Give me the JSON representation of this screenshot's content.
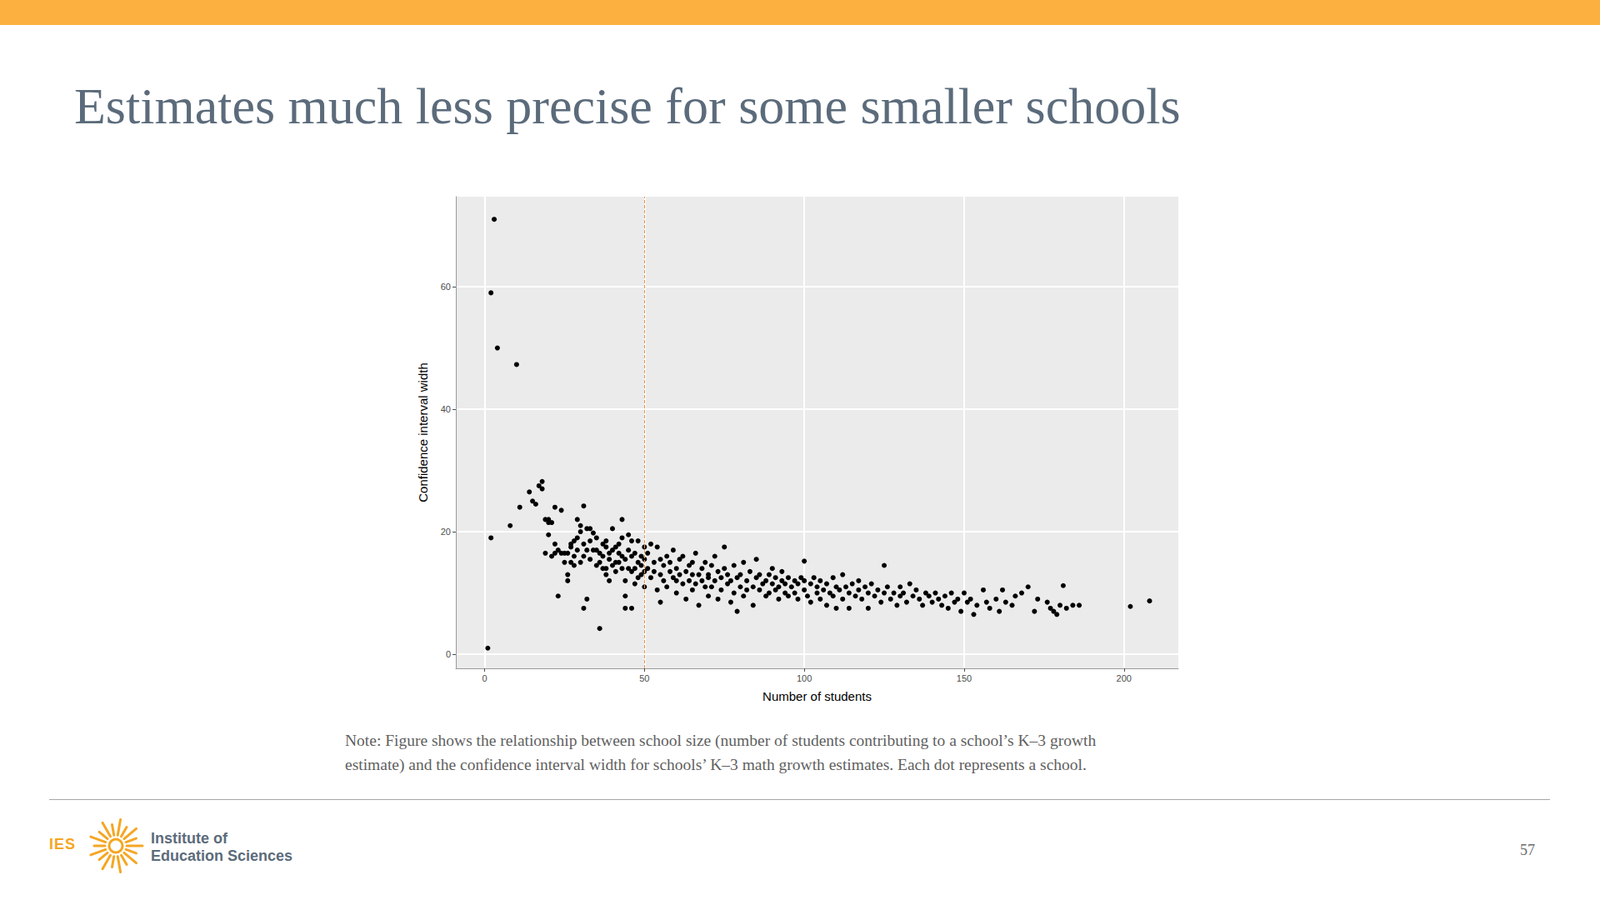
{
  "chart_data": {
    "type": "scatter",
    "title": "Estimates much less precise for some smaller schools",
    "x_label": "Number of students",
    "y_label": "Confidence interval width",
    "color": "#000000",
    "marker": "circle",
    "grid": true,
    "xlim": [
      -9,
      217
    ],
    "xticks": [
      0,
      50,
      100,
      150,
      200
    ],
    "ylim": [
      -2.3,
      74.7
    ],
    "yticks": [
      0,
      20,
      40,
      60
    ],
    "vlines": [
      {
        "x": 50,
        "color": "#e8944a",
        "line_style": "dashed"
      }
    ],
    "x": [
      3,
      2,
      4,
      10,
      1,
      2,
      8,
      11,
      14,
      15,
      16,
      17,
      18,
      18,
      19,
      19,
      20,
      20,
      20,
      21,
      21,
      22,
      22,
      22,
      23,
      23,
      24,
      24,
      25,
      25,
      26,
      26,
      26,
      27,
      27,
      27,
      28,
      28,
      28,
      29,
      29,
      29,
      30,
      30,
      30,
      31,
      31,
      31,
      31,
      32,
      32,
      32,
      33,
      33,
      33,
      34,
      34,
      35,
      35,
      35,
      36,
      36,
      36,
      37,
      37,
      37,
      38,
      38,
      38,
      38,
      39,
      39,
      39,
      40,
      40,
      40,
      41,
      41,
      41,
      42,
      42,
      42,
      43,
      43,
      43,
      43,
      44,
      44,
      44,
      44,
      45,
      45,
      45,
      46,
      46,
      46,
      46,
      47,
      47,
      47,
      48,
      48,
      48,
      49,
      49,
      49,
      50,
      50,
      50,
      50,
      51,
      51,
      52,
      52,
      53,
      53,
      54,
      54,
      55,
      55,
      55,
      56,
      56,
      57,
      57,
      58,
      58,
      59,
      59,
      60,
      60,
      60,
      61,
      61,
      62,
      62,
      63,
      63,
      64,
      64,
      65,
      65,
      65,
      66,
      66,
      67,
      67,
      68,
      68,
      69,
      69,
      70,
      70,
      70,
      71,
      71,
      72,
      72,
      73,
      73,
      74,
      74,
      75,
      75,
      76,
      76,
      77,
      77,
      78,
      78,
      79,
      79,
      80,
      80,
      81,
      81,
      82,
      82,
      83,
      84,
      84,
      85,
      85,
      86,
      86,
      87,
      88,
      88,
      89,
      89,
      90,
      90,
      91,
      91,
      92,
      92,
      93,
      93,
      94,
      94,
      95,
      95,
      96,
      97,
      97,
      98,
      98,
      99,
      100,
      100,
      100,
      101,
      102,
      102,
      103,
      104,
      104,
      105,
      105,
      106,
      107,
      107,
      108,
      109,
      109,
      110,
      110,
      111,
      112,
      112,
      113,
      114,
      114,
      115,
      116,
      117,
      117,
      118,
      119,
      120,
      120,
      121,
      122,
      123,
      124,
      125,
      125,
      126,
      127,
      128,
      129,
      130,
      130,
      131,
      132,
      133,
      134,
      135,
      136,
      137,
      138,
      139,
      140,
      141,
      142,
      143,
      144,
      145,
      146,
      147,
      148,
      149,
      150,
      151,
      152,
      153,
      154,
      156,
      157,
      158,
      160,
      161,
      162,
      163,
      165,
      166,
      168,
      170,
      172,
      173,
      176,
      177,
      178,
      179,
      180,
      181,
      182,
      184,
      186,
      202,
      208
    ],
    "values": [
      71,
      59,
      50,
      47.3,
      1,
      19,
      21,
      24,
      26.5,
      25,
      24.5,
      27.5,
      28.2,
      27,
      22,
      16.5,
      22,
      19.5,
      21.5,
      16,
      21.5,
      24,
      18,
      16.5,
      9.5,
      17,
      23.5,
      16.5,
      16.5,
      15,
      12,
      13,
      16.5,
      18,
      17.5,
      15,
      16,
      18.5,
      14.5,
      22,
      17,
      19,
      20,
      21,
      15,
      24.2,
      7.5,
      18,
      16,
      9,
      20.5,
      17,
      20.5,
      15.5,
      18.5,
      19.8,
      17,
      17,
      14.5,
      19,
      4.2,
      16.5,
      15,
      18,
      14,
      16,
      14,
      13,
      17.5,
      18.5,
      12,
      16.5,
      15.5,
      20.5,
      14.5,
      17,
      17.5,
      15,
      13.5,
      15,
      16.5,
      18,
      22,
      19,
      14,
      16,
      7.5,
      9.5,
      15.5,
      12,
      19.5,
      14,
      17,
      7.5,
      16,
      13.5,
      18.5,
      14,
      16.5,
      11.5,
      18.5,
      12.5,
      15,
      13,
      16,
      14.5,
      17.5,
      11,
      13.5,
      15.5,
      14,
      16.5,
      12.5,
      18,
      13.5,
      15,
      10.5,
      17.5,
      13,
      15.5,
      8.5,
      14.5,
      12,
      16,
      11,
      13.5,
      15,
      12.5,
      17,
      14,
      10,
      12,
      15.5,
      13,
      11.5,
      16,
      13.5,
      9,
      14.5,
      12,
      15,
      10.5,
      13,
      11.5,
      16.5,
      13,
      8,
      14,
      12,
      11,
      15,
      13,
      9.5,
      12.5,
      14.5,
      11,
      12,
      16,
      13.5,
      9,
      12.5,
      10.5,
      14,
      17.5,
      11.5,
      13,
      8.5,
      12,
      14.5,
      10,
      12.5,
      7,
      13,
      11,
      15,
      9.5,
      12,
      10.5,
      13.5,
      11,
      8,
      12.5,
      15.5,
      10.5,
      13,
      11.5,
      12,
      9.5,
      13,
      10,
      11.5,
      14,
      10.5,
      12.5,
      11,
      9,
      12,
      13.5,
      10,
      11.5,
      12.5,
      9.5,
      11,
      10,
      12,
      11.5,
      9,
      12.5,
      10.5,
      15.2,
      12,
      9.5,
      11.5,
      8.5,
      12.5,
      10,
      11,
      9,
      12,
      10.5,
      11.5,
      8,
      10,
      12.5,
      9.5,
      11,
      7.5,
      10.5,
      13,
      9,
      11,
      10,
      7.5,
      11.5,
      9.5,
      10.5,
      12,
      9,
      11,
      10,
      7.5,
      11.5,
      9.5,
      10.5,
      8.5,
      14.5,
      10,
      11,
      9,
      10,
      8,
      11,
      9.5,
      10,
      8.5,
      11.5,
      9.5,
      10.5,
      9,
      8,
      10,
      9.5,
      8.5,
      10,
      9,
      8,
      9.5,
      7.5,
      10,
      8.5,
      9,
      7,
      10,
      8.5,
      9,
      6.5,
      8,
      10.5,
      8.5,
      7.5,
      9,
      7,
      10.5,
      8.5,
      8,
      9.5,
      10,
      11,
      7,
      9,
      8.5,
      7.5,
      7,
      6.5,
      8,
      11.2,
      7.5,
      8,
      8,
      7.8,
      8.7
    ]
  },
  "slide": {
    "note": [
      "Note: Figure shows the relationship between school size (number of students contributing to a school’s K–3 growth",
      "estimate) and the confidence interval width for schools’ K–3 math growth estimates. Each dot represents a school."
    ],
    "logo": {
      "abbreviation": "IES",
      "name": [
        "Institute of",
        "Education Sciences"
      ]
    },
    "page_number": 57
  }
}
